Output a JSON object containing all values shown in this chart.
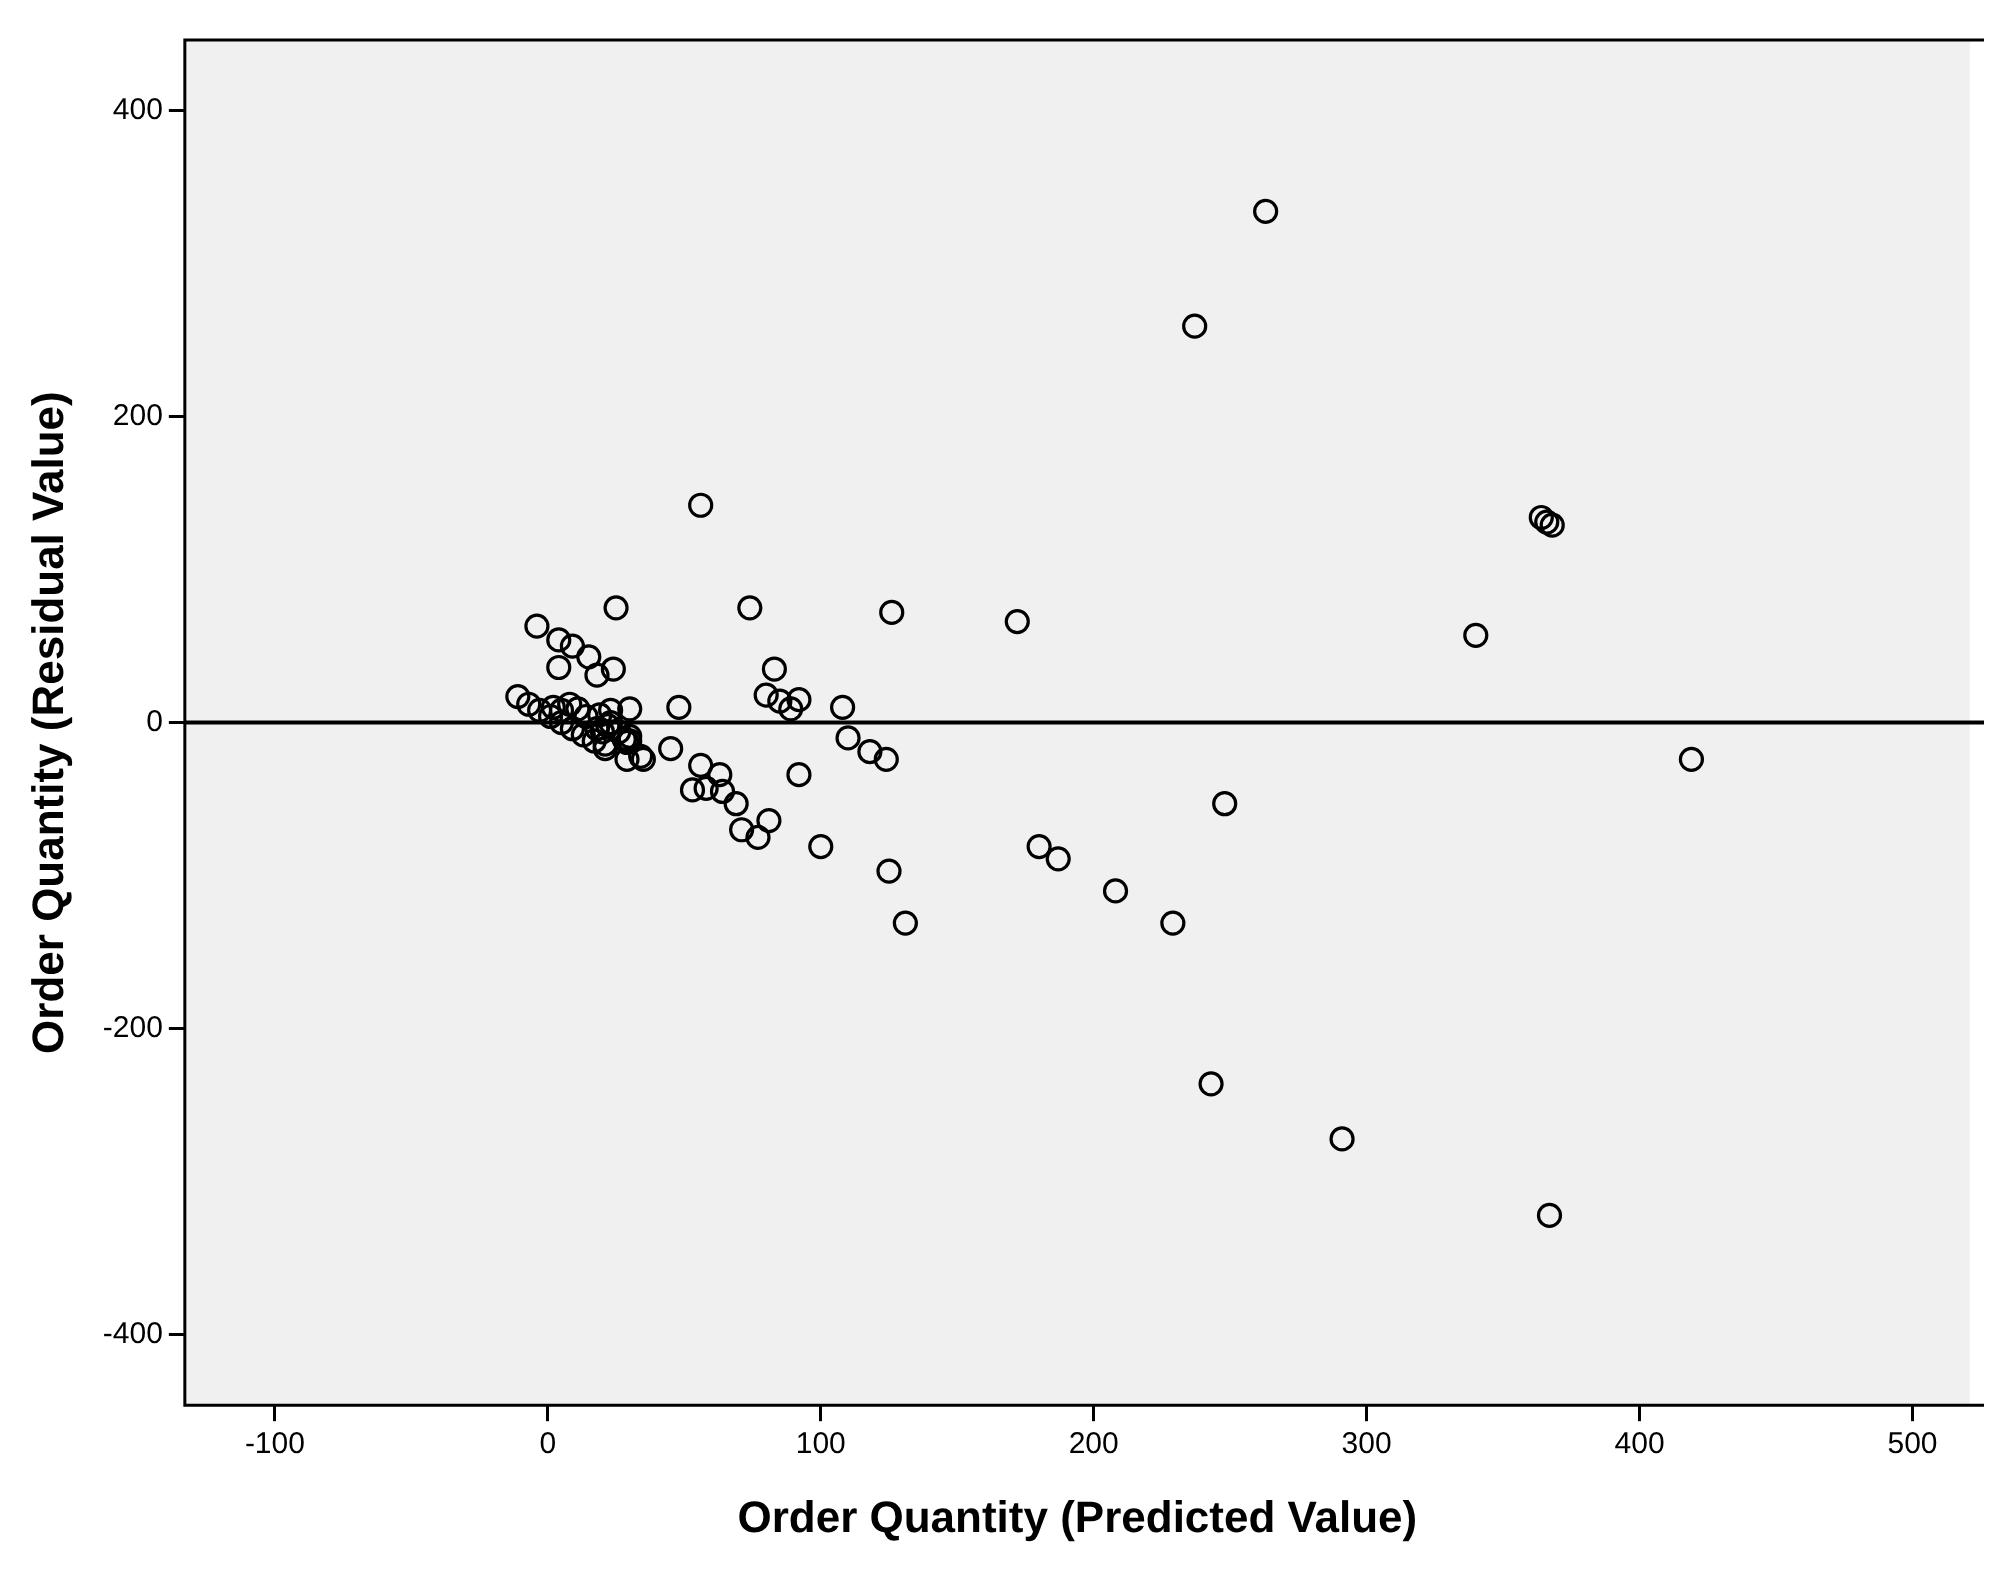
{
  "chart_data": {
    "type": "scatter",
    "xlabel": "Order Quantity (Predicted Value)",
    "ylabel": "Order Quantity (Residual Value)",
    "marker": "circle",
    "grid": false,
    "xlim": [
      -133,
      521
    ],
    "ylim": [
      -446,
      446
    ],
    "xticks": [
      -100,
      0,
      100,
      200,
      300,
      400,
      500
    ],
    "yticks": [
      -400,
      -200,
      0,
      200,
      400
    ],
    "ref_lines": [
      {
        "axis": "y",
        "value": 0,
        "color": "#000000"
      }
    ],
    "series": [
      {
        "color": "#000000",
        "x": [
          263,
          237,
          56,
          364,
          366,
          368,
          -4,
          4,
          9,
          25,
          74,
          126,
          172,
          340,
          15,
          4,
          24,
          18,
          83,
          80,
          85,
          89,
          92,
          108,
          48,
          30,
          419,
          110,
          118,
          124,
          92,
          248,
          56,
          63,
          53,
          58,
          64,
          69,
          81,
          71,
          77,
          100,
          180,
          187,
          208,
          125,
          131,
          229,
          243,
          291,
          367,
          45,
          34,
          35,
          29,
          29,
          30,
          23,
          21,
          -11,
          -7,
          -3,
          1,
          5,
          9,
          13,
          17,
          2,
          5,
          8,
          11,
          14,
          18,
          20,
          22,
          19,
          23,
          26,
          28,
          30,
          21
        ],
        "values": [
          334,
          259,
          142,
          134,
          131,
          129,
          63,
          54,
          50,
          75,
          75,
          72,
          66,
          57,
          43,
          36,
          35,
          31,
          35,
          18,
          14,
          9,
          15,
          10,
          10,
          9,
          -24,
          -10,
          -19,
          -24,
          -34,
          -53,
          -28,
          -34,
          -44,
          -43,
          -45,
          -53,
          -64,
          -70,
          -75,
          -81,
          -81,
          -89,
          -110,
          -97,
          -131,
          -131,
          -236,
          -272,
          -322,
          -17,
          -22,
          -24,
          -24,
          -13,
          -9,
          0,
          -14,
          17,
          12,
          8,
          4,
          0,
          -4,
          -8,
          -12,
          10,
          8,
          12,
          9,
          4,
          -4,
          -6,
          -2,
          5,
          8,
          -6,
          -11,
          -12,
          -17
        ]
      }
    ]
  }
}
